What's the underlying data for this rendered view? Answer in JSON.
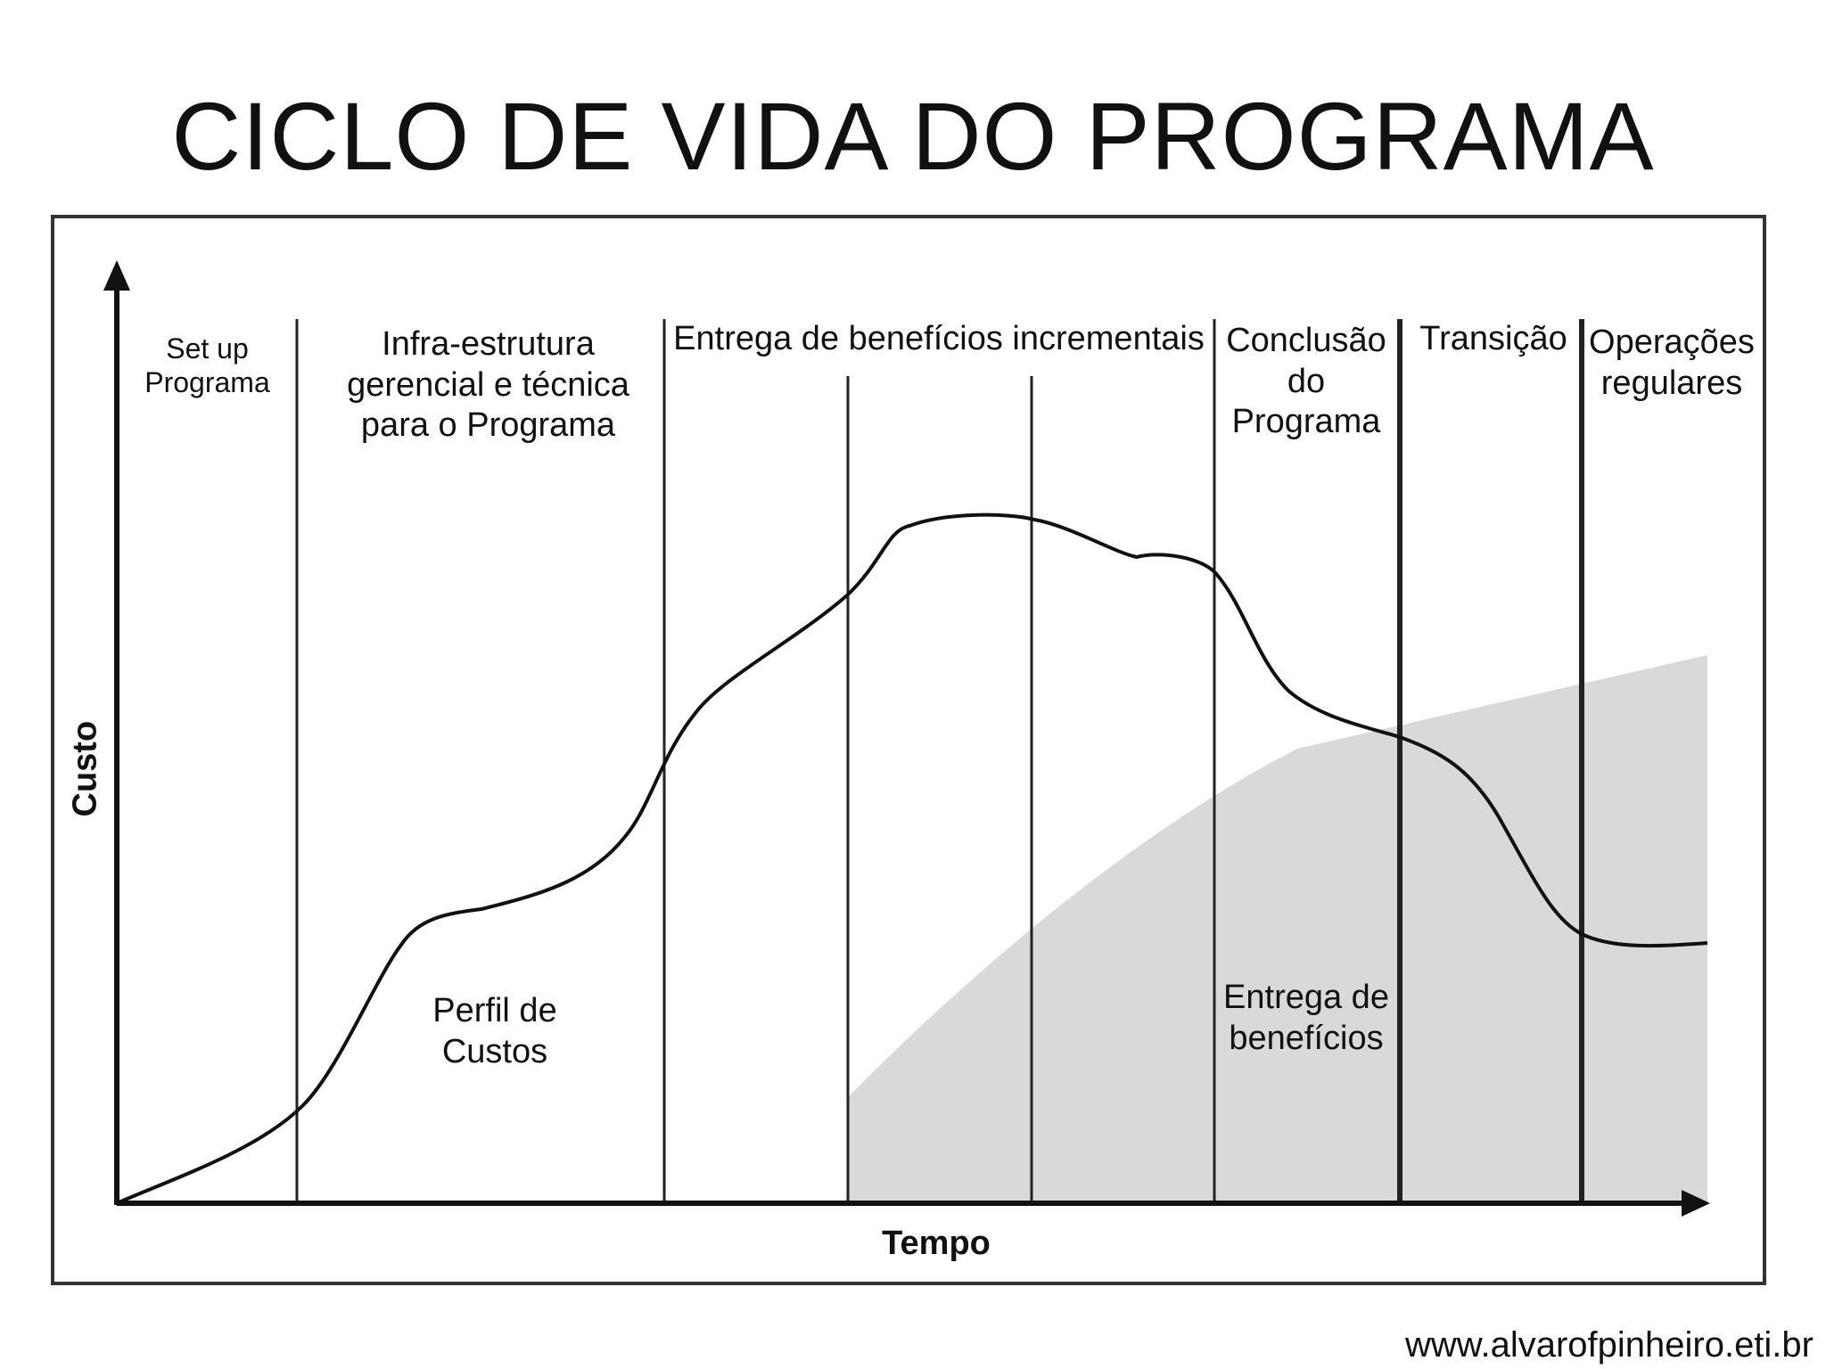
{
  "title": "CICLO DE VIDA DO PROGRAMA",
  "axes": {
    "y_label": "Custo",
    "x_label": "Tempo"
  },
  "phases": [
    "Set up\nPrograma",
    "Infra-estrutura\ngerencial e técnica\npara o Programa",
    "Entrega de benefícios incrementais",
    "Conclusão\ndo\nPrograma",
    "Transição",
    "Operações\nregulares"
  ],
  "curves": {
    "cost": "Perfil de\nCustos",
    "benefits": "Entrega de\nbenefícios"
  },
  "colors": {
    "line": "#111111",
    "benefit_fill": "#d9d9d9",
    "frame": "#333333"
  },
  "footer": "www.alvarofpinheiro.eti.br"
}
